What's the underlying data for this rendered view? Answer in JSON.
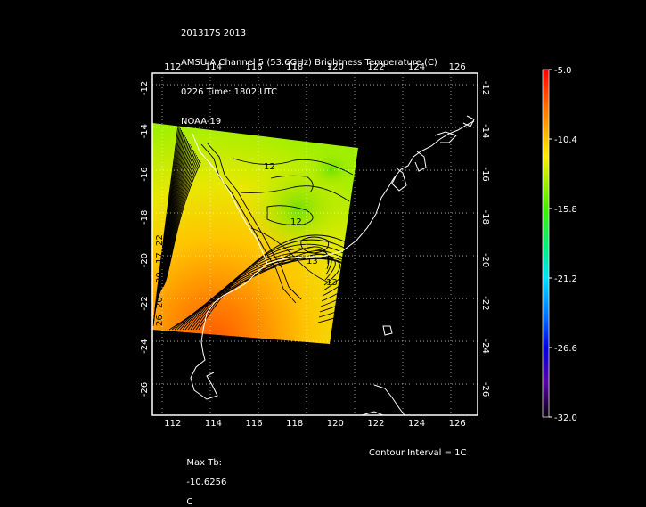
{
  "header": {
    "line1": "201317S 2013",
    "line2": "AMSU-A Channel 5 (53.6GHz) Brightness Temperature (C)",
    "line3": "0226 Time: 1802 UTC",
    "line4": "NOAA-19"
  },
  "map": {
    "lon_ticks": [
      112,
      114,
      116,
      118,
      120,
      122,
      124,
      126
    ],
    "lat_ticks": [
      -12,
      -14,
      -16,
      -18,
      -20,
      -22,
      -24,
      -26
    ],
    "lon_range": [
      111,
      127
    ],
    "lat_range": [
      -27.2,
      -11.3
    ],
    "contour_labels": [
      "12",
      "12",
      "13",
      "13",
      "20",
      "30",
      "17",
      "22",
      "26",
      "28"
    ]
  },
  "colorbar": {
    "labels": [
      "-5.0",
      "-10.4",
      "-15.8",
      "-21.2",
      "-26.6",
      "-32.0"
    ],
    "colors": [
      "#ff0000",
      "#ff8800",
      "#ffee00",
      "#88ff00",
      "#00ff88",
      "#00ffff",
      "#0088ff",
      "#0000ff",
      "#6600cc",
      "#000000"
    ]
  },
  "footer": {
    "max_label": "Max Tb:",
    "max_value": "-10.6256",
    "max_unit": "C",
    "contour_interval": "Contour Interval = 1C"
  }
}
